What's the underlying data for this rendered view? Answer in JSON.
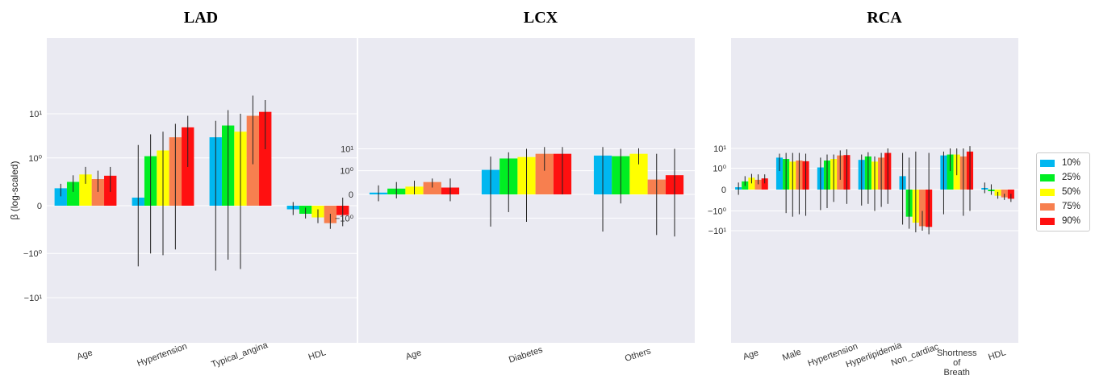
{
  "chart_data": [
    {
      "type": "bar",
      "title": "LAD",
      "ylabel": "β (log-scaled)",
      "scale": "symlog",
      "yticks": [
        {
          "value": 10,
          "label": "10¹"
        },
        {
          "value": 1,
          "label": "10⁰"
        },
        {
          "value": 0,
          "label": "0"
        },
        {
          "value": -1,
          "label": "−10⁰"
        },
        {
          "value": -10,
          "label": "−10¹"
        }
      ],
      "ylim": [
        -11,
        25
      ],
      "categories": [
        "Age",
        "Hypertension",
        "Typical_angina",
        "HDL"
      ],
      "series": [
        {
          "name": "10%",
          "values": [
            0.14,
            0.05,
            3.0,
            -0.02
          ],
          "err_low": [
            0.06,
            -2.0,
            -2.5,
            -0.06
          ],
          "err_high": [
            0.2,
            2.0,
            7.0,
            0.02
          ]
        },
        {
          "name": "25%",
          "values": [
            0.23,
            1.1,
            5.5,
            -0.05
          ],
          "err_low": [
            0.1,
            -1.0,
            -1.4,
            -0.09
          ],
          "err_high": [
            0.36,
            3.5,
            12.0,
            -0.01
          ]
        },
        {
          "name": "50%",
          "values": [
            0.38,
            1.5,
            4.0,
            -0.08
          ],
          "err_low": [
            0.2,
            -1.1,
            -2.3,
            -0.14
          ],
          "err_high": [
            0.6,
            4.0,
            10.0,
            -0.02
          ]
        },
        {
          "name": "75%",
          "values": [
            0.28,
            3.0,
            9.0,
            -0.14
          ],
          "err_low": [
            0.1,
            -0.8,
            0.7,
            -0.22
          ],
          "err_high": [
            0.48,
            6.0,
            25.0,
            -0.05
          ]
        },
        {
          "name": "90%",
          "values": [
            0.35,
            5.0,
            11.0,
            -0.06
          ],
          "err_low": [
            0.1,
            0.6,
            1.6,
            -0.18
          ],
          "err_high": [
            0.6,
            9.0,
            20.0,
            0.05
          ]
        }
      ]
    },
    {
      "type": "bar",
      "title": "LCX",
      "ylabel": "",
      "scale": "symlog",
      "yticks": [
        {
          "value": 10,
          "label": "10¹"
        },
        {
          "value": 1,
          "label": "10⁰"
        },
        {
          "value": 0,
          "label": "0"
        },
        {
          "value": -1,
          "label": "−10⁰"
        }
      ],
      "ylim": [
        -7,
        12
      ],
      "categories": [
        "Age",
        "Diabetes",
        "Others"
      ],
      "series": [
        {
          "name": "10%",
          "values": [
            0.02,
            1.1,
            5.0
          ],
          "err_low": [
            -0.1,
            -2.5,
            -4.2
          ],
          "err_high": [
            0.15,
            4.5,
            12.0
          ]
        },
        {
          "name": "25%",
          "values": [
            0.08,
            3.7,
            4.7
          ],
          "err_low": [
            -0.05,
            -0.5,
            -0.15
          ],
          "err_high": [
            0.25,
            7.0,
            10.0
          ]
        },
        {
          "name": "50%",
          "values": [
            0.12,
            4.3,
            6.0
          ],
          "err_low": [
            0.0,
            -1.5,
            2.0
          ],
          "err_high": [
            0.3,
            10.0,
            10.5
          ]
        },
        {
          "name": "75%",
          "values": [
            0.25,
            6.0,
            0.35
          ],
          "err_low": [
            0.1,
            1.0,
            -6.0
          ],
          "err_high": [
            0.4,
            12.0,
            6.0
          ]
        },
        {
          "name": "90%",
          "values": [
            0.1,
            6.0,
            0.6
          ],
          "err_low": [
            -0.1,
            0.0,
            -7.0
          ],
          "err_high": [
            0.4,
            12.0,
            10.0
          ]
        }
      ]
    },
    {
      "type": "bar",
      "title": "RCA",
      "ylabel": "",
      "scale": "symlog",
      "yticks": [
        {
          "value": 10,
          "label": "10¹"
        },
        {
          "value": 1,
          "label": "10⁰"
        },
        {
          "value": 0,
          "label": "0"
        },
        {
          "value": -1,
          "label": "−10⁰"
        },
        {
          "value": -10,
          "label": "−10¹"
        }
      ],
      "ylim": [
        -15,
        17
      ],
      "categories": [
        "Age",
        "Male",
        "Hypertension",
        "Hyperlipidemia",
        "Non_cardiac",
        "Shortness of Breath",
        "HDL"
      ],
      "series": [
        {
          "name": "10%",
          "values": [
            0.03,
            3.5,
            1.1,
            2.7,
            0.35,
            4.5,
            0.02
          ],
          "err_low": [
            -0.08,
            0.7,
            -0.9,
            -0.5,
            -5.0,
            -1.5,
            -0.05
          ],
          "err_high": [
            0.12,
            5.5,
            3.5,
            5.0,
            6.0,
            7.0,
            0.12
          ]
        },
        {
          "name": "25%",
          "values": [
            0.15,
            3.0,
            2.5,
            4.0,
            -2.0,
            5.0,
            -0.02
          ],
          "err_low": [
            0.05,
            -1.3,
            -0.7,
            -0.4,
            -8.0,
            0.7,
            -0.08
          ],
          "err_high": [
            0.35,
            6.0,
            5.0,
            6.5,
            3.5,
            10.0,
            0.08
          ]
        },
        {
          "name": "50%",
          "values": [
            0.28,
            2.2,
            3.0,
            2.2,
            -4.0,
            5.0,
            -0.1
          ],
          "err_low": [
            0.1,
            -2.0,
            -0.3,
            -1.0,
            -12.0,
            0.4,
            -0.18
          ],
          "err_high": [
            0.48,
            6.0,
            5.0,
            4.0,
            7.0,
            10.0,
            -0.03
          ]
        },
        {
          "name": "75%",
          "values": [
            0.2,
            2.5,
            4.5,
            3.5,
            -6.0,
            4.0,
            -0.14
          ],
          "err_low": [
            0.08,
            -1.5,
            0.2,
            -0.6,
            -10.0,
            -1.8,
            -0.22
          ],
          "err_high": [
            0.45,
            6.0,
            8.0,
            6.0,
            -1.0,
            10.0,
            -0.06
          ]
        },
        {
          "name": "90%",
          "values": [
            0.25,
            2.3,
            4.7,
            6.0,
            -6.5,
            7.0,
            -0.18
          ],
          "err_low": [
            0.1,
            -1.8,
            -0.4,
            -0.4,
            -15.0,
            -1.0,
            -0.3
          ],
          "err_high": [
            0.45,
            5.5,
            9.0,
            10.0,
            6.0,
            13.0,
            -0.06
          ]
        }
      ]
    }
  ],
  "legend": {
    "items": [
      {
        "label": "10%",
        "color": "#00b7f0"
      },
      {
        "label": "25%",
        "color": "#00ee22"
      },
      {
        "label": "50%",
        "color": "#ffff00"
      },
      {
        "label": "75%",
        "color": "#f77f4f"
      },
      {
        "label": "90%",
        "color": "#ff1010"
      }
    ]
  },
  "style": {
    "panel_bg": "#eaeaf2",
    "grid": "#ffffff",
    "errbar": "#222222",
    "background": "#ffffff"
  }
}
